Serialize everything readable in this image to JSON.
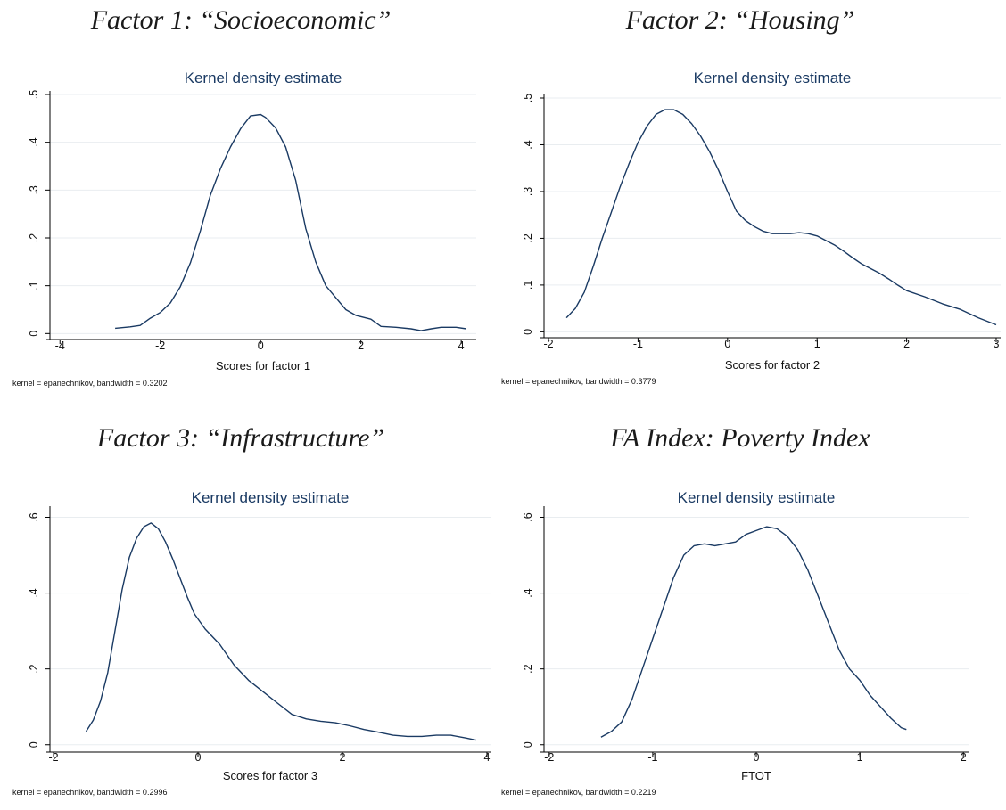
{
  "headings": [
    "Factor 1: “Socioeconomic”",
    "Factor 2: “Housing”",
    "Factor 3: “Infrastructure”",
    "FA Index: Poverty Index"
  ],
  "colors": {
    "line": "#1a3a63",
    "title": "#1a3a63",
    "grid": "#e9edf0",
    "axis": "#000000"
  },
  "chart_data": [
    {
      "type": "line",
      "title": "Kernel density estimate",
      "xlabel": "Scores for factor 1",
      "ylabel": "",
      "note": "kernel = epanechnikov, bandwidth = 0.3202",
      "xlim": [
        -4.2,
        4.3
      ],
      "ylim": [
        -0.005,
        0.5
      ],
      "xticks": [
        -4,
        -2,
        0,
        2,
        4
      ],
      "xtick_labels": [
        "-4",
        "-2",
        "0",
        "2",
        "4"
      ],
      "yticks": [
        0,
        0.1,
        0.2,
        0.3,
        0.4,
        0.5
      ],
      "ytick_labels": [
        "0",
        ".1",
        ".2",
        ".3",
        ".4",
        ".5"
      ],
      "grid": true,
      "x": [
        -2.9,
        -2.6,
        -2.4,
        -2.2,
        -2.0,
        -1.8,
        -1.6,
        -1.4,
        -1.2,
        -1.0,
        -0.8,
        -0.6,
        -0.4,
        -0.2,
        0.0,
        0.1,
        0.3,
        0.5,
        0.7,
        0.9,
        1.1,
        1.3,
        1.5,
        1.7,
        1.9,
        2.2,
        2.4,
        2.7,
        3.0,
        3.2,
        3.4,
        3.6,
        3.9,
        4.1
      ],
      "y": [
        0.011,
        0.014,
        0.017,
        0.032,
        0.044,
        0.064,
        0.098,
        0.148,
        0.215,
        0.29,
        0.345,
        0.39,
        0.428,
        0.455,
        0.458,
        0.452,
        0.43,
        0.39,
        0.32,
        0.22,
        0.15,
        0.1,
        0.075,
        0.05,
        0.038,
        0.03,
        0.015,
        0.013,
        0.01,
        0.006,
        0.01,
        0.013,
        0.013,
        0.01
      ]
    },
    {
      "type": "line",
      "title": "Kernel density estimate",
      "xlabel": "Scores for factor 2",
      "ylabel": "",
      "note": "kernel = epanechnikov, bandwidth = 0.3779",
      "xlim": [
        -2.05,
        3.05
      ],
      "ylim": [
        -0.005,
        0.5
      ],
      "xticks": [
        -2,
        -1,
        0,
        1,
        2,
        3
      ],
      "xtick_labels": [
        "-2",
        "-1",
        "0",
        "1",
        "2",
        "3"
      ],
      "yticks": [
        0,
        0.1,
        0.2,
        0.3,
        0.4,
        0.5
      ],
      "ytick_labels": [
        "0",
        ".1",
        ".2",
        ".3",
        ".4",
        ".5"
      ],
      "grid": true,
      "x": [
        -1.8,
        -1.7,
        -1.6,
        -1.5,
        -1.4,
        -1.3,
        -1.2,
        -1.1,
        -1.0,
        -0.9,
        -0.8,
        -0.7,
        -0.6,
        -0.5,
        -0.4,
        -0.3,
        -0.2,
        -0.1,
        0.0,
        0.1,
        0.2,
        0.3,
        0.4,
        0.5,
        0.6,
        0.7,
        0.8,
        0.9,
        1.0,
        1.1,
        1.2,
        1.3,
        1.4,
        1.5,
        1.6,
        1.7,
        1.8,
        1.9,
        2.0,
        2.2,
        2.4,
        2.6,
        2.8,
        3.0
      ],
      "y": [
        0.03,
        0.05,
        0.085,
        0.14,
        0.2,
        0.255,
        0.31,
        0.36,
        0.405,
        0.44,
        0.465,
        0.475,
        0.475,
        0.465,
        0.445,
        0.418,
        0.385,
        0.345,
        0.3,
        0.258,
        0.238,
        0.225,
        0.215,
        0.21,
        0.21,
        0.21,
        0.212,
        0.21,
        0.205,
        0.195,
        0.185,
        0.172,
        0.158,
        0.145,
        0.135,
        0.125,
        0.113,
        0.1,
        0.088,
        0.075,
        0.06,
        0.048,
        0.03,
        0.015
      ]
    },
    {
      "type": "line",
      "title": "Kernel density estimate",
      "xlabel": "Scores for factor 3",
      "ylabel": "",
      "note": "kernel = epanechnikov, bandwidth = 0.2996",
      "xlim": [
        -2.05,
        4.05
      ],
      "ylim": [
        -0.01,
        0.62
      ],
      "xticks": [
        -2,
        0,
        2,
        4
      ],
      "xtick_labels": [
        "-2",
        "0",
        "2",
        "4"
      ],
      "yticks": [
        0,
        0.2,
        0.4,
        0.6
      ],
      "ytick_labels": [
        "0",
        ".2",
        ".4",
        ".6"
      ],
      "grid": true,
      "x": [
        -1.55,
        -1.45,
        -1.35,
        -1.25,
        -1.15,
        -1.05,
        -0.95,
        -0.85,
        -0.75,
        -0.65,
        -0.55,
        -0.45,
        -0.35,
        -0.25,
        -0.15,
        -0.05,
        0.1,
        0.3,
        0.5,
        0.7,
        0.9,
        1.1,
        1.3,
        1.5,
        1.7,
        1.9,
        2.1,
        2.3,
        2.5,
        2.7,
        2.9,
        3.1,
        3.3,
        3.5,
        3.7,
        3.85
      ],
      "y": [
        0.035,
        0.065,
        0.115,
        0.19,
        0.3,
        0.41,
        0.495,
        0.545,
        0.575,
        0.585,
        0.57,
        0.535,
        0.49,
        0.44,
        0.39,
        0.345,
        0.305,
        0.265,
        0.21,
        0.17,
        0.14,
        0.11,
        0.08,
        0.068,
        0.062,
        0.058,
        0.05,
        0.04,
        0.033,
        0.025,
        0.022,
        0.022,
        0.025,
        0.025,
        0.018,
        0.012
      ]
    },
    {
      "type": "line",
      "title": "Kernel density estimate",
      "xlabel": "FTOT",
      "ylabel": "",
      "note": "kernel = epanechnikov, bandwidth = 0.2219",
      "xlim": [
        -2.05,
        2.05
      ],
      "ylim": [
        -0.01,
        0.62
      ],
      "xticks": [
        -2,
        -1,
        0,
        1,
        2
      ],
      "xtick_labels": [
        "-2",
        "-1",
        "0",
        "1",
        "2"
      ],
      "yticks": [
        0,
        0.2,
        0.4,
        0.6
      ],
      "ytick_labels": [
        "0",
        ".2",
        ".4",
        ".6"
      ],
      "grid": true,
      "x": [
        -1.5,
        -1.4,
        -1.3,
        -1.2,
        -1.1,
        -1.0,
        -0.9,
        -0.8,
        -0.7,
        -0.6,
        -0.5,
        -0.4,
        -0.3,
        -0.2,
        -0.1,
        0.0,
        0.1,
        0.2,
        0.3,
        0.4,
        0.5,
        0.6,
        0.7,
        0.8,
        0.9,
        1.0,
        1.1,
        1.2,
        1.3,
        1.4,
        1.45
      ],
      "y": [
        0.02,
        0.035,
        0.06,
        0.12,
        0.2,
        0.28,
        0.36,
        0.44,
        0.5,
        0.525,
        0.53,
        0.525,
        0.53,
        0.535,
        0.555,
        0.565,
        0.575,
        0.57,
        0.55,
        0.515,
        0.46,
        0.39,
        0.32,
        0.25,
        0.2,
        0.17,
        0.13,
        0.1,
        0.07,
        0.045,
        0.04
      ]
    }
  ]
}
